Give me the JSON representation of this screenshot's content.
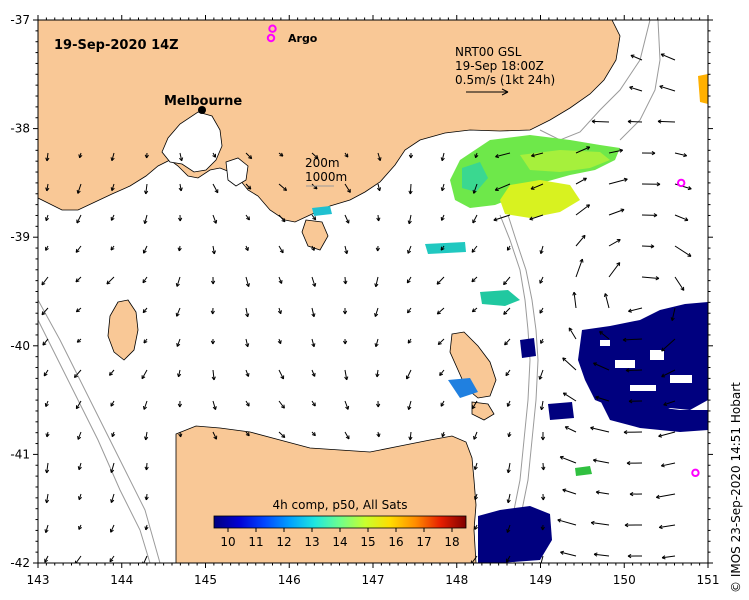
{
  "map": {
    "timestamp": "19-Sep-2020 14Z",
    "lon_ticks": [
      "143",
      "144",
      "145",
      "146",
      "147",
      "148",
      "149",
      "150",
      "151"
    ],
    "lat_ticks": [
      "-37",
      "-38",
      "-39",
      "-40",
      "-41",
      "-42"
    ],
    "land_color": "#f9c896",
    "sea_color": "#ffffff",
    "city": {
      "name": "Melbourne",
      "lon": 145.0,
      "lat": -37.8
    },
    "argo": {
      "label": "Argo",
      "color": "#ff00ff",
      "floats": [
        {
          "lon": 145.8,
          "lat": -37.08
        },
        {
          "lon": 150.68,
          "lat": -38.5
        },
        {
          "lon": 150.85,
          "lat": -41.17
        }
      ]
    },
    "current_legend": {
      "line1": "NRT00 GSL",
      "line2": "19-Sep 18:00Z",
      "line3": "0.5m/s (1kt 24h)"
    },
    "isobath_legend": {
      "line1": "200m",
      "line2": "1000m"
    },
    "credit": "© IMOS 23-Sep-2020 14:51 Hobart"
  },
  "colorbar": {
    "title": "4h comp, p50, All Sats",
    "ticks": [
      "10",
      "11",
      "12",
      "13",
      "14",
      "15",
      "16",
      "17",
      "18"
    ],
    "range": [
      9.5,
      18.5
    ],
    "colors": [
      "#00007f",
      "#0000d4",
      "#0046ff",
      "#00a0ff",
      "#1ee6e0",
      "#6eff8c",
      "#c8ff2e",
      "#ffdc00",
      "#ff8c00",
      "#e61e00",
      "#7f0000"
    ]
  }
}
